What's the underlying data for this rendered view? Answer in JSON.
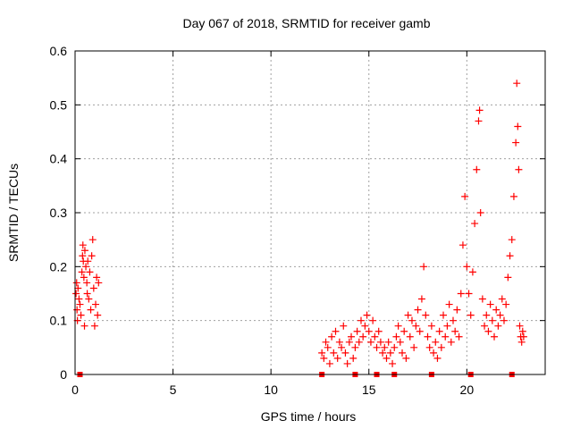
{
  "chart_data": {
    "type": "scatter",
    "title": "Day 067 of 2018, SRMTID for receiver gamb",
    "xlabel": "GPS time / hours",
    "ylabel": "SRMTID / TECUs",
    "xlim": [
      0,
      24
    ],
    "ylim": [
      0,
      0.6
    ],
    "xticks": [
      0,
      5,
      10,
      15,
      20
    ],
    "yticks": [
      0,
      0.1,
      0.2,
      0.3,
      0.4,
      0.5,
      0.6
    ],
    "xtick_labels": [
      "0",
      "5",
      "10",
      "15",
      "20"
    ],
    "ytick_labels": [
      "0",
      "0.1",
      "0.2",
      "0.3",
      "0.4",
      "0.5",
      "0.6"
    ],
    "grid": true,
    "marker": "+",
    "color": "#ff0000",
    "series": [
      {
        "name": "SRMTID",
        "points": [
          [
            0.05,
            0.15
          ],
          [
            0.08,
            0.17
          ],
          [
            0.1,
            0.12
          ],
          [
            0.12,
            0.1
          ],
          [
            0.15,
            0.16
          ],
          [
            0.2,
            0.14
          ],
          [
            0.25,
            0.13
          ],
          [
            0.3,
            0.11
          ],
          [
            0.35,
            0.19
          ],
          [
            0.38,
            0.22
          ],
          [
            0.4,
            0.24
          ],
          [
            0.42,
            0.21
          ],
          [
            0.45,
            0.18
          ],
          [
            0.48,
            0.09
          ],
          [
            0.5,
            0.23
          ],
          [
            0.55,
            0.2
          ],
          [
            0.6,
            0.17
          ],
          [
            0.62,
            0.15
          ],
          [
            0.65,
            0.21
          ],
          [
            0.7,
            0.14
          ],
          [
            0.75,
            0.19
          ],
          [
            0.8,
            0.12
          ],
          [
            0.85,
            0.22
          ],
          [
            0.9,
            0.25
          ],
          [
            0.95,
            0.16
          ],
          [
            1.0,
            0.09
          ],
          [
            1.05,
            0.13
          ],
          [
            1.1,
            0.18
          ],
          [
            1.15,
            0.11
          ],
          [
            1.2,
            0.17
          ],
          [
            12.6,
            0.04
          ],
          [
            12.7,
            0.03
          ],
          [
            12.8,
            0.06
          ],
          [
            12.9,
            0.05
          ],
          [
            13.0,
            0.02
          ],
          [
            13.1,
            0.07
          ],
          [
            13.2,
            0.04
          ],
          [
            13.3,
            0.08
          ],
          [
            13.4,
            0.03
          ],
          [
            13.5,
            0.06
          ],
          [
            13.6,
            0.05
          ],
          [
            13.7,
            0.09
          ],
          [
            13.8,
            0.04
          ],
          [
            13.9,
            0.02
          ],
          [
            14.0,
            0.06
          ],
          [
            14.1,
            0.07
          ],
          [
            14.2,
            0.03
          ],
          [
            14.3,
            0.05
          ],
          [
            14.4,
            0.08
          ],
          [
            14.5,
            0.06
          ],
          [
            14.6,
            0.1
          ],
          [
            14.7,
            0.07
          ],
          [
            14.8,
            0.09
          ],
          [
            14.9,
            0.11
          ],
          [
            15.0,
            0.08
          ],
          [
            15.1,
            0.06
          ],
          [
            15.2,
            0.1
          ],
          [
            15.3,
            0.07
          ],
          [
            15.4,
            0.05
          ],
          [
            15.5,
            0.08
          ],
          [
            15.6,
            0.06
          ],
          [
            15.7,
            0.04
          ],
          [
            15.8,
            0.05
          ],
          [
            15.9,
            0.03
          ],
          [
            16.0,
            0.06
          ],
          [
            16.1,
            0.04
          ],
          [
            16.2,
            0.02
          ],
          [
            16.3,
            0.05
          ],
          [
            16.4,
            0.07
          ],
          [
            16.5,
            0.09
          ],
          [
            16.6,
            0.06
          ],
          [
            16.7,
            0.04
          ],
          [
            16.8,
            0.08
          ],
          [
            16.9,
            0.03
          ],
          [
            17.0,
            0.11
          ],
          [
            17.1,
            0.07
          ],
          [
            17.2,
            0.1
          ],
          [
            17.3,
            0.05
          ],
          [
            17.4,
            0.09
          ],
          [
            17.5,
            0.12
          ],
          [
            17.6,
            0.08
          ],
          [
            17.7,
            0.14
          ],
          [
            17.8,
            0.2
          ],
          [
            17.9,
            0.11
          ],
          [
            18.0,
            0.07
          ],
          [
            18.1,
            0.05
          ],
          [
            18.2,
            0.09
          ],
          [
            18.3,
            0.04
          ],
          [
            18.4,
            0.06
          ],
          [
            18.5,
            0.03
          ],
          [
            18.6,
            0.08
          ],
          [
            18.7,
            0.05
          ],
          [
            18.8,
            0.11
          ],
          [
            18.9,
            0.07
          ],
          [
            19.0,
            0.09
          ],
          [
            19.1,
            0.13
          ],
          [
            19.2,
            0.06
          ],
          [
            19.3,
            0.1
          ],
          [
            19.4,
            0.08
          ],
          [
            19.5,
            0.12
          ],
          [
            19.6,
            0.07
          ],
          [
            19.7,
            0.15
          ],
          [
            19.8,
            0.24
          ],
          [
            19.9,
            0.33
          ],
          [
            20.0,
            0.2
          ],
          [
            20.1,
            0.15
          ],
          [
            20.2,
            0.11
          ],
          [
            20.3,
            0.19
          ],
          [
            20.4,
            0.28
          ],
          [
            20.5,
            0.38
          ],
          [
            20.6,
            0.47
          ],
          [
            20.65,
            0.49
          ],
          [
            20.7,
            0.3
          ],
          [
            20.8,
            0.14
          ],
          [
            20.9,
            0.09
          ],
          [
            21.0,
            0.11
          ],
          [
            21.1,
            0.08
          ],
          [
            21.2,
            0.13
          ],
          [
            21.3,
            0.1
          ],
          [
            21.4,
            0.07
          ],
          [
            21.5,
            0.12
          ],
          [
            21.6,
            0.09
          ],
          [
            21.7,
            0.11
          ],
          [
            21.8,
            0.14
          ],
          [
            21.9,
            0.1
          ],
          [
            22.0,
            0.13
          ],
          [
            22.1,
            0.18
          ],
          [
            22.2,
            0.22
          ],
          [
            22.3,
            0.25
          ],
          [
            22.4,
            0.33
          ],
          [
            22.5,
            0.43
          ],
          [
            22.55,
            0.54
          ],
          [
            22.6,
            0.46
          ],
          [
            22.65,
            0.38
          ],
          [
            22.7,
            0.09
          ],
          [
            22.75,
            0.07
          ],
          [
            22.8,
            0.06
          ],
          [
            22.85,
            0.08
          ],
          [
            22.9,
            0.07
          ]
        ]
      }
    ],
    "baseline_markers": [
      0.25,
      12.6,
      14.3,
      15.4,
      16.3,
      18.2,
      20.2,
      22.3
    ]
  }
}
